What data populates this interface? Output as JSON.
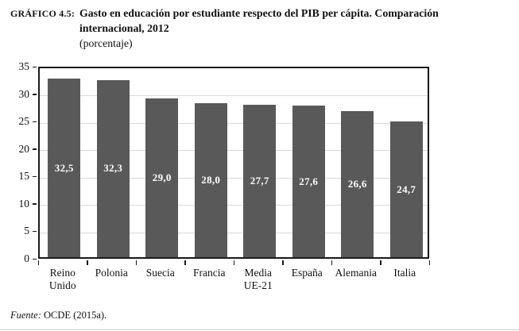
{
  "header": {
    "figure_label": "GRÁFICO 4.5:",
    "title_lines": [
      "Gasto en educación por estudiante respecto del PIB per cápita. Comparación",
      "internacional, 2012"
    ],
    "subtitle": "(porcentaje)"
  },
  "chart_data": {
    "type": "bar",
    "title": "Gasto en educación por estudiante respecto del PIB per cápita. Comparación internacional, 2012 (porcentaje)",
    "categories": [
      "Reino Unido",
      "Polonia",
      "Suecia",
      "Francia",
      "Media UE-21",
      "España",
      "Alemania",
      "Italia"
    ],
    "category_tick_lines": [
      [
        "Reino",
        "Unido"
      ],
      [
        "Polonia"
      ],
      [
        "Suecia"
      ],
      [
        "Francia"
      ],
      [
        "Media",
        "UE-21"
      ],
      [
        "España"
      ],
      [
        "Alemania"
      ],
      [
        "Italia"
      ]
    ],
    "values": [
      32.5,
      32.3,
      29.0,
      28.0,
      27.7,
      27.6,
      26.6,
      24.7
    ],
    "value_labels": [
      "32,5",
      "32,3",
      "29,0",
      "28,0",
      "27,7",
      "27,6",
      "26,6",
      "24,7"
    ],
    "xlabel": "",
    "ylabel": "",
    "ylim": [
      0,
      35
    ],
    "yticks": [
      0,
      5,
      10,
      15,
      20,
      25,
      30,
      35
    ],
    "grid": true,
    "legend": false,
    "colors": {
      "bar": "#595959",
      "gridline": "#d9d9d9",
      "axis": "#1a1a1a",
      "value_label": "#ffffff"
    }
  },
  "footer": {
    "source_label": "Fuente:",
    "source_text": "OCDE (2015a)."
  }
}
